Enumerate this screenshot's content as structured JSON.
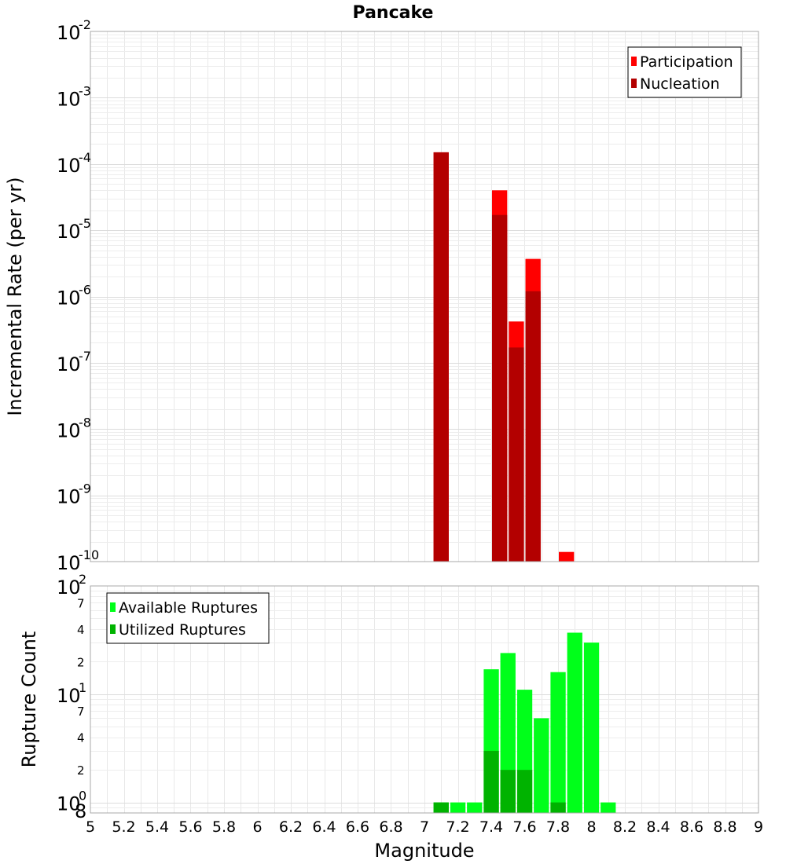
{
  "chart_data": [
    {
      "type": "bar",
      "title": "Pancake",
      "xlabel": "",
      "ylabel": "Incremental Rate (per yr)",
      "yscale": "log",
      "xlim": [
        5,
        9
      ],
      "ylim": [
        1e-10,
        0.01
      ],
      "y_ticks": [
        {
          "base": "10",
          "exp": "-2",
          "value": 0.01
        },
        {
          "base": "10",
          "exp": "-3",
          "value": 0.001
        },
        {
          "base": "10",
          "exp": "-4",
          "value": 0.0001
        },
        {
          "base": "10",
          "exp": "-5",
          "value": 1e-05
        },
        {
          "base": "10",
          "exp": "-6",
          "value": 1e-06
        },
        {
          "base": "10",
          "exp": "-7",
          "value": 1e-07
        },
        {
          "base": "10",
          "exp": "-8",
          "value": 1e-08
        },
        {
          "base": "10",
          "exp": "-9",
          "value": 1e-09
        },
        {
          "base": "10",
          "exp": "-10",
          "value": 1e-10
        }
      ],
      "legend_position": "top-right",
      "series": [
        {
          "name": "Participation",
          "color": "#ff0000",
          "points": [
            {
              "x": 7.1,
              "y": 0.00015
            },
            {
              "x": 7.45,
              "y": 4e-05
            },
            {
              "x": 7.55,
              "y": 4.2e-07
            },
            {
              "x": 7.65,
              "y": 3.7e-06
            },
            {
              "x": 7.85,
              "y": 1.4e-10
            }
          ]
        },
        {
          "name": "Nucleation",
          "color": "#b30000",
          "points": [
            {
              "x": 7.1,
              "y": 0.00015
            },
            {
              "x": 7.45,
              "y": 1.7e-05
            },
            {
              "x": 7.55,
              "y": 1.7e-07
            },
            {
              "x": 7.65,
              "y": 1.2e-06
            }
          ]
        }
      ]
    },
    {
      "type": "bar",
      "title": "",
      "xlabel": "Magnitude",
      "ylabel": "Rupture Count",
      "yscale": "log",
      "xlim": [
        5,
        9
      ],
      "ylim": [
        0.8,
        100
      ],
      "x_ticks": [
        "5",
        "5.2",
        "5.4",
        "5.6",
        "5.8",
        "6",
        "6.2",
        "6.4",
        "6.6",
        "6.8",
        "7",
        "7.2",
        "7.4",
        "7.6",
        "7.8",
        "8",
        "8.2",
        "8.4",
        "8.6",
        "8.8",
        "9"
      ],
      "y_major_ticks": [
        {
          "base": "10",
          "exp": "2",
          "value": 100
        },
        {
          "base": "10",
          "exp": "1",
          "value": 10
        },
        {
          "base": "10",
          "exp": "0",
          "value": 1
        }
      ],
      "y_minor_ticks": [
        {
          "label": "7",
          "value": 70
        },
        {
          "label": "4",
          "value": 40
        },
        {
          "label": "2",
          "value": 20
        },
        {
          "label": "7",
          "value": 7
        },
        {
          "label": "4",
          "value": 4
        },
        {
          "label": "2",
          "value": 2
        },
        {
          "label": "8",
          "value": 0.8
        }
      ],
      "legend_position": "top-left",
      "series": [
        {
          "name": "Available Ruptures",
          "color": "#00ff1a",
          "points": [
            {
              "x": 7.1,
              "y": 1
            },
            {
              "x": 7.2,
              "y": 1
            },
            {
              "x": 7.3,
              "y": 1
            },
            {
              "x": 7.4,
              "y": 17
            },
            {
              "x": 7.5,
              "y": 24
            },
            {
              "x": 7.6,
              "y": 11
            },
            {
              "x": 7.7,
              "y": 6
            },
            {
              "x": 7.8,
              "y": 16
            },
            {
              "x": 7.9,
              "y": 37
            },
            {
              "x": 8.0,
              "y": 30
            },
            {
              "x": 8.1,
              "y": 1
            }
          ]
        },
        {
          "name": "Utilized Ruptures",
          "color": "#00b300",
          "points": [
            {
              "x": 7.1,
              "y": 1
            },
            {
              "x": 7.4,
              "y": 3
            },
            {
              "x": 7.5,
              "y": 2
            },
            {
              "x": 7.6,
              "y": 2
            },
            {
              "x": 7.8,
              "y": 1
            }
          ]
        }
      ]
    }
  ]
}
